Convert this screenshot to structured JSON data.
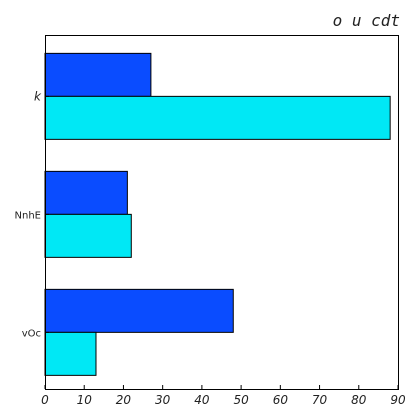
{
  "chart_data": {
    "type": "bar",
    "orientation": "horizontal",
    "title": "o u cdt",
    "xlabel": "",
    "ylabel": "",
    "categories": [
      "k",
      "NnhE",
      "vOc"
    ],
    "series": [
      {
        "values": [
          27,
          21,
          48
        ],
        "color": "#0a4cff"
      },
      {
        "values": [
          88,
          22,
          13
        ],
        "color": "#00e8f5"
      }
    ],
    "xlim": [
      0,
      90
    ],
    "x_ticks": [
      "0",
      "10",
      "20",
      "30",
      "40",
      "50",
      "60",
      "70",
      "80",
      "90"
    ],
    "grid": false,
    "legend": "none"
  }
}
